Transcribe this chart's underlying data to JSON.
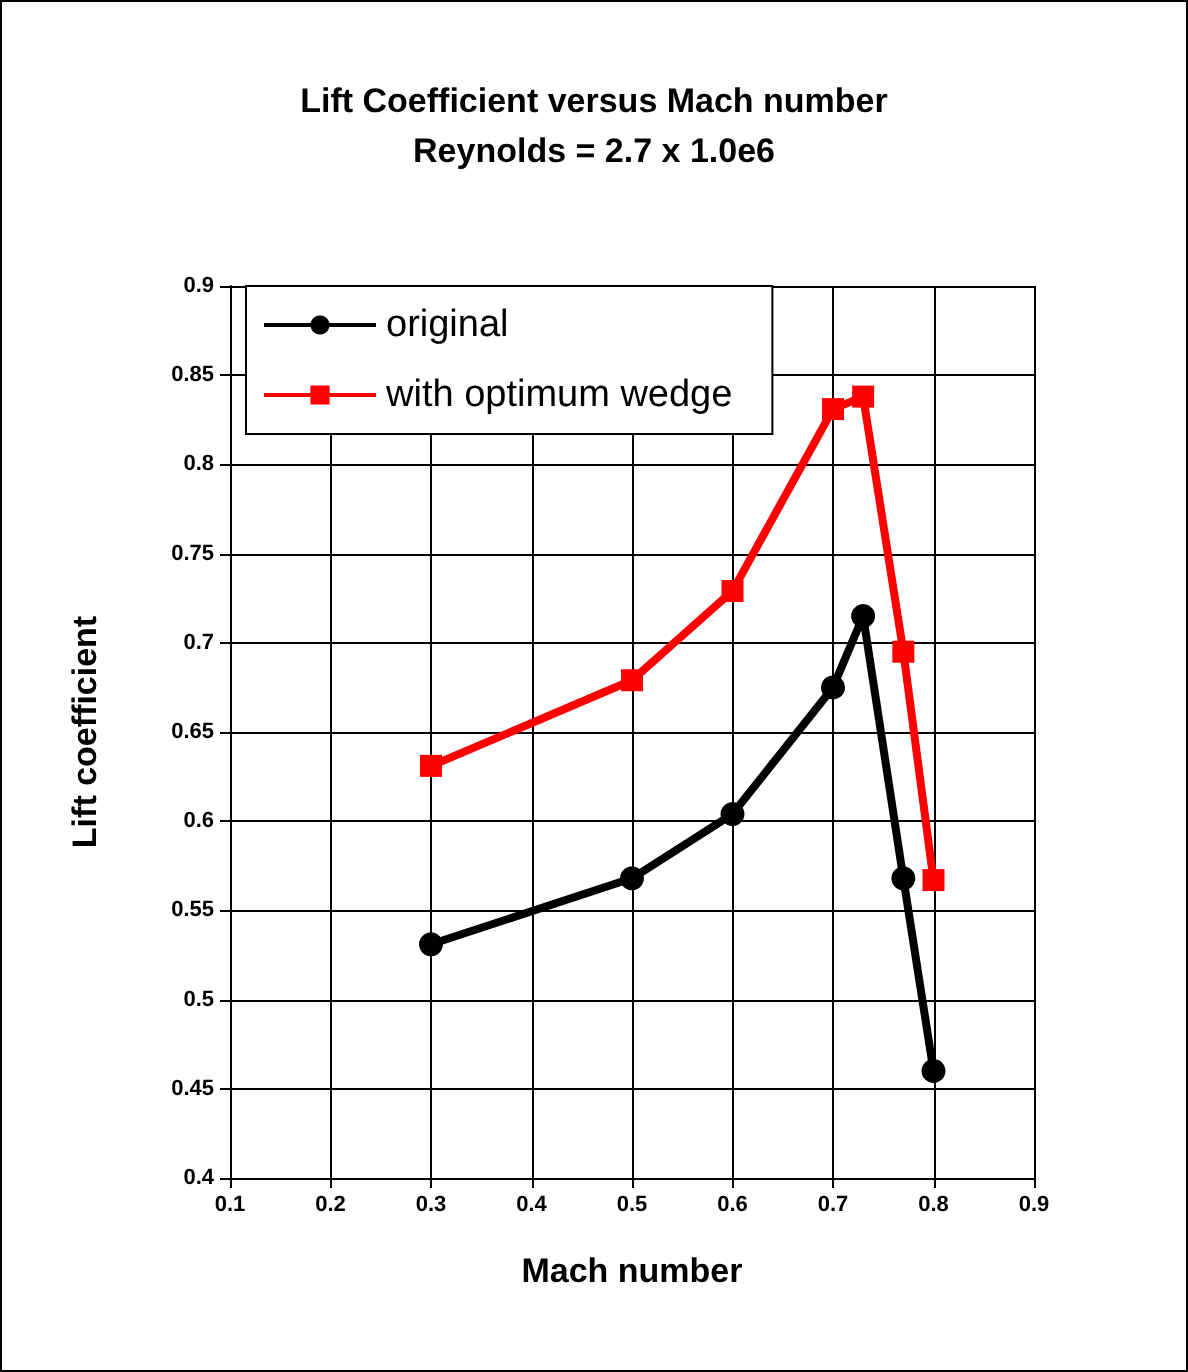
{
  "chart_data": {
    "type": "line",
    "title": "Lift Coefficient versus Mach number",
    "subtitle": "Reynolds = 2.7 x 1.0e6",
    "xlabel": "Mach number",
    "ylabel": "Lift coefficient",
    "x": [
      0.3,
      0.5,
      0.6,
      0.7,
      0.73,
      0.77,
      0.8
    ],
    "series": [
      {
        "name": "original",
        "color": "#000000",
        "marker": "circle",
        "values": [
          0.531,
          0.568,
          0.604,
          0.675,
          0.715,
          0.568,
          0.46
        ]
      },
      {
        "name": "with optimum wedge",
        "color": "#ff0000",
        "marker": "square",
        "values": [
          0.631,
          0.679,
          0.729,
          0.831,
          0.838,
          0.695,
          0.567
        ]
      }
    ],
    "xlim": [
      0.1,
      0.9
    ],
    "xticks": [
      0.1,
      0.2,
      0.3,
      0.4,
      0.5,
      0.6,
      0.7,
      0.8,
      0.9
    ],
    "ylim": [
      0.4,
      0.9
    ],
    "yticks": [
      0.4,
      0.45,
      0.5,
      0.55,
      0.6,
      0.65,
      0.7,
      0.75,
      0.8,
      0.85,
      0.9
    ],
    "grid": true,
    "legend": "top left",
    "line_style": "solid"
  }
}
